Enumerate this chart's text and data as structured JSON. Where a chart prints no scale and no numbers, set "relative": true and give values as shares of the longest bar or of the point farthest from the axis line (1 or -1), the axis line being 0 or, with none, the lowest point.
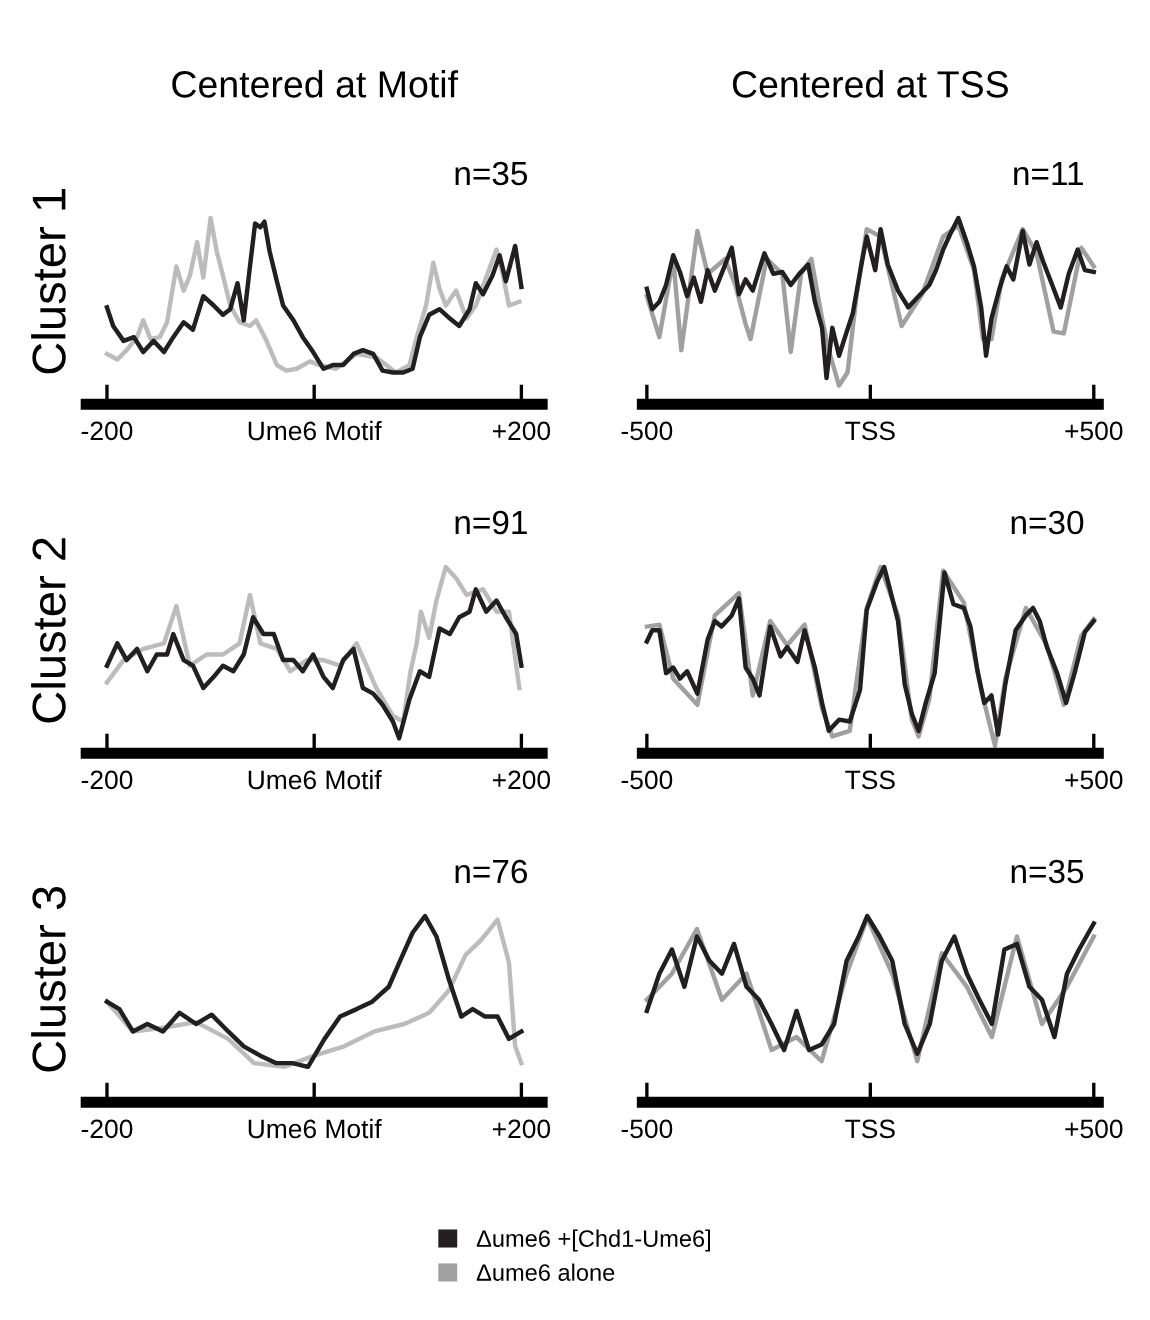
{
  "chart_data": [
    {
      "type": "line",
      "relative": true,
      "title": "Centered at Motif",
      "ylabel": "Cluster 1",
      "annotations": [
        "n=35"
      ],
      "xlim": [
        -220,
        220
      ],
      "xticks": [
        {
          "value": -200,
          "label": "-200"
        },
        {
          "value": 0,
          "label": "Ume6 Motif"
        },
        {
          "value": 200,
          "label": "+200"
        }
      ],
      "grid": false,
      "legend": false,
      "series": [
        {
          "color": "#bcbcbc",
          "x": [
            -200,
            -190,
            -181,
            -171,
            -165,
            -158,
            -149,
            -142,
            -133,
            -126,
            -120,
            -113,
            -107,
            -100,
            -94,
            -88,
            -81,
            -72,
            -62,
            -56,
            -46,
            -36,
            -27,
            -17,
            -4,
            5,
            21,
            41,
            60,
            79,
            92,
            99,
            108,
            115,
            121,
            127,
            137,
            147,
            156,
            166,
            176,
            182,
            188,
            198
          ],
          "values": [
            0.27,
            0.24,
            0.29,
            0.36,
            0.45,
            0.35,
            0.36,
            0.44,
            0.74,
            0.61,
            0.69,
            0.87,
            0.68,
            1.0,
            0.82,
            0.69,
            0.53,
            0.44,
            0.42,
            0.45,
            0.34,
            0.21,
            0.18,
            0.19,
            0.23,
            0.21,
            0.19,
            0.27,
            0.25,
            0.17,
            0.21,
            0.36,
            0.53,
            0.76,
            0.62,
            0.53,
            0.61,
            0.46,
            0.53,
            0.68,
            0.83,
            0.7,
            0.53,
            0.55
          ]
        },
        {
          "color": "#231f20",
          "x": [
            -200,
            -194,
            -184,
            -174,
            -165,
            -155,
            -145,
            -136,
            -126,
            -117,
            -107,
            -97,
            -88,
            -81,
            -74,
            -68,
            -62,
            -57,
            -52,
            -48,
            -43,
            -36,
            -30,
            -20,
            -11,
            -1,
            9,
            18,
            28,
            38,
            47,
            57,
            66,
            76,
            86,
            95,
            102,
            111,
            121,
            131,
            140,
            150,
            156,
            163,
            172,
            179,
            185,
            194,
            200
          ],
          "values": [
            0.52,
            0.42,
            0.34,
            0.36,
            0.28,
            0.34,
            0.28,
            0.36,
            0.44,
            0.4,
            0.58,
            0.53,
            0.48,
            0.51,
            0.65,
            0.45,
            0.74,
            0.97,
            0.95,
            0.98,
            0.82,
            0.66,
            0.53,
            0.45,
            0.36,
            0.28,
            0.19,
            0.21,
            0.21,
            0.27,
            0.29,
            0.27,
            0.18,
            0.17,
            0.17,
            0.19,
            0.36,
            0.48,
            0.51,
            0.46,
            0.42,
            0.51,
            0.65,
            0.59,
            0.69,
            0.8,
            0.66,
            0.85,
            0.63
          ]
        }
      ]
    },
    {
      "type": "line",
      "relative": true,
      "title": "Centered at TSS",
      "annotations": [
        "n=11"
      ],
      "xlim": [
        -510,
        510
      ],
      "xticks": [
        {
          "value": -500,
          "label": "-500"
        },
        {
          "value": 0,
          "label": "TSS"
        },
        {
          "value": 500,
          "label": "+500"
        }
      ],
      "grid": false,
      "legend": false,
      "series": [
        {
          "color": "#a0a0a0",
          "x": [
            -500,
            -472,
            -441,
            -423,
            -387,
            -364,
            -325,
            -302,
            -279,
            -268,
            -232,
            -197,
            -178,
            -155,
            -132,
            -108,
            -93,
            -70,
            -51,
            -31,
            -8,
            23,
            70,
            116,
            163,
            197,
            232,
            252,
            271,
            294,
            341,
            372,
            410,
            433,
            472,
            500
          ],
          "values": [
            0.58,
            0.36,
            0.78,
            0.29,
            0.93,
            0.7,
            0.78,
            0.64,
            0.43,
            0.35,
            0.78,
            0.7,
            0.28,
            0.7,
            0.78,
            0.46,
            0.29,
            0.1,
            0.17,
            0.58,
            0.94,
            0.9,
            0.42,
            0.59,
            0.9,
            0.96,
            0.72,
            0.35,
            0.35,
            0.67,
            0.94,
            0.81,
            0.39,
            0.38,
            0.84,
            0.74
          ]
        },
        {
          "color": "#231f20",
          "x": [
            -500,
            -488,
            -472,
            -457,
            -441,
            -426,
            -410,
            -395,
            -379,
            -364,
            -348,
            -333,
            -310,
            -294,
            -279,
            -263,
            -237,
            -217,
            -197,
            -178,
            -159,
            -139,
            -124,
            -108,
            -98,
            -85,
            -70,
            -54,
            -39,
            -20,
            -8,
            11,
            23,
            39,
            62,
            85,
            108,
            132,
            147,
            163,
            178,
            197,
            217,
            232,
            248,
            259,
            271,
            289,
            305,
            320,
            341,
            356,
            372,
            386,
            407,
            426,
            444,
            464,
            480,
            500
          ],
          "values": [
            0.62,
            0.51,
            0.55,
            0.64,
            0.8,
            0.71,
            0.58,
            0.68,
            0.55,
            0.72,
            0.61,
            0.7,
            0.84,
            0.59,
            0.67,
            0.61,
            0.81,
            0.7,
            0.71,
            0.64,
            0.7,
            0.75,
            0.55,
            0.41,
            0.14,
            0.41,
            0.26,
            0.38,
            0.49,
            0.75,
            0.9,
            0.72,
            0.94,
            0.75,
            0.61,
            0.52,
            0.58,
            0.64,
            0.72,
            0.83,
            0.91,
            1.0,
            0.86,
            0.74,
            0.52,
            0.26,
            0.46,
            0.62,
            0.74,
            0.67,
            0.93,
            0.75,
            0.87,
            0.77,
            0.64,
            0.52,
            0.7,
            0.83,
            0.72,
            0.71
          ]
        }
      ]
    },
    {
      "type": "line",
      "relative": true,
      "ylabel": "Cluster 2",
      "annotations": [
        "n=91"
      ],
      "xlim": [
        -220,
        220
      ],
      "xticks": [
        {
          "value": -200,
          "label": "-200"
        },
        {
          "value": 0,
          "label": "Ume6 Motif"
        },
        {
          "value": 200,
          "label": "+200"
        }
      ],
      "grid": false,
      "legend": false,
      "series": [
        {
          "color": "#bcbcbc",
          "x": [
            -200,
            -184,
            -165,
            -145,
            -133,
            -120,
            -104,
            -88,
            -72,
            -62,
            -52,
            -36,
            -23,
            -7,
            9,
            25,
            41,
            60,
            76,
            86,
            93,
            99,
            103,
            111,
            118,
            127,
            137,
            147,
            163,
            176,
            188,
            198
          ],
          "values": [
            0.38,
            0.5,
            0.56,
            0.59,
            0.79,
            0.47,
            0.53,
            0.53,
            0.59,
            0.85,
            0.59,
            0.56,
            0.44,
            0.5,
            0.5,
            0.47,
            0.59,
            0.35,
            0.2,
            0.17,
            0.44,
            0.59,
            0.76,
            0.62,
            0.82,
            1.0,
            0.94,
            0.85,
            0.88,
            0.76,
            0.76,
            0.35
          ]
        },
        {
          "color": "#231f20",
          "x": [
            -200,
            -190,
            -181,
            -171,
            -161,
            -152,
            -142,
            -136,
            -126,
            -117,
            -107,
            -97,
            -88,
            -78,
            -68,
            -59,
            -49,
            -39,
            -30,
            -20,
            -11,
            -1,
            9,
            18,
            28,
            38,
            47,
            57,
            66,
            76,
            82,
            92,
            102,
            111,
            121,
            131,
            140,
            150,
            156,
            166,
            176,
            185,
            195,
            200
          ],
          "values": [
            0.47,
            0.59,
            0.5,
            0.56,
            0.44,
            0.53,
            0.53,
            0.64,
            0.5,
            0.47,
            0.35,
            0.41,
            0.47,
            0.44,
            0.53,
            0.73,
            0.64,
            0.64,
            0.5,
            0.5,
            0.44,
            0.53,
            0.41,
            0.35,
            0.5,
            0.56,
            0.35,
            0.32,
            0.26,
            0.17,
            0.08,
            0.29,
            0.44,
            0.41,
            0.67,
            0.64,
            0.73,
            0.76,
            0.88,
            0.76,
            0.82,
            0.73,
            0.64,
            0.47
          ]
        }
      ]
    },
    {
      "type": "line",
      "relative": true,
      "annotations": [
        "n=30"
      ],
      "xlim": [
        -510,
        510
      ],
      "xticks": [
        {
          "value": -500,
          "label": "-500"
        },
        {
          "value": 0,
          "label": "TSS"
        },
        {
          "value": 500,
          "label": "+500"
        }
      ],
      "grid": false,
      "legend": false,
      "series": [
        {
          "color": "#a0a0a0",
          "x": [
            -500,
            -472,
            -441,
            -387,
            -348,
            -294,
            -263,
            -224,
            -186,
            -147,
            -108,
            -85,
            -46,
            -8,
            23,
            62,
            93,
            108,
            132,
            163,
            209,
            248,
            279,
            302,
            348,
            395,
            433,
            472,
            500
          ],
          "values": [
            0.68,
            0.69,
            0.4,
            0.26,
            0.74,
            0.86,
            0.31,
            0.71,
            0.58,
            0.69,
            0.24,
            0.09,
            0.12,
            0.78,
            1.0,
            0.74,
            0.18,
            0.09,
            0.29,
            0.98,
            0.81,
            0.34,
            0.04,
            0.4,
            0.78,
            0.58,
            0.26,
            0.63,
            0.72
          ]
        },
        {
          "color": "#231f20",
          "x": [
            -500,
            -488,
            -472,
            -457,
            -441,
            -426,
            -410,
            -387,
            -364,
            -348,
            -333,
            -310,
            -294,
            -279,
            -263,
            -248,
            -224,
            -201,
            -186,
            -163,
            -147,
            -124,
            -108,
            -93,
            -70,
            -46,
            -23,
            -8,
            15,
            31,
            46,
            62,
            77,
            93,
            108,
            124,
            144,
            166,
            186,
            209,
            224,
            240,
            255,
            271,
            286,
            302,
            325,
            348,
            364,
            379,
            395,
            418,
            438,
            457,
            480,
            500
          ],
          "values": [
            0.6,
            0.66,
            0.66,
            0.43,
            0.46,
            0.4,
            0.44,
            0.32,
            0.61,
            0.71,
            0.68,
            0.74,
            0.83,
            0.46,
            0.4,
            0.31,
            0.68,
            0.52,
            0.57,
            0.49,
            0.66,
            0.46,
            0.27,
            0.12,
            0.18,
            0.17,
            0.34,
            0.77,
            0.92,
            1.0,
            0.86,
            0.71,
            0.37,
            0.21,
            0.12,
            0.27,
            0.43,
            0.97,
            0.8,
            0.78,
            0.68,
            0.44,
            0.27,
            0.31,
            0.1,
            0.37,
            0.66,
            0.74,
            0.78,
            0.71,
            0.57,
            0.43,
            0.27,
            0.43,
            0.65,
            0.71
          ]
        }
      ]
    },
    {
      "type": "line",
      "relative": true,
      "ylabel": "Cluster 3",
      "annotations": [
        "n=76"
      ],
      "xlim": [
        -220,
        220
      ],
      "xticks": [
        {
          "value": -200,
          "label": "-200"
        },
        {
          "value": 0,
          "label": "Ume6 Motif"
        },
        {
          "value": 200,
          "label": "+200"
        }
      ],
      "grid": false,
      "legend": false,
      "series": [
        {
          "color": "#bcbcbc",
          "x": [
            -200,
            -175,
            -146,
            -114,
            -83,
            -58,
            -29,
            0,
            29,
            58,
            87,
            111,
            130,
            146,
            161,
            177,
            188,
            194,
            200
          ],
          "values": [
            0.54,
            0.38,
            0.4,
            0.43,
            0.34,
            0.21,
            0.19,
            0.25,
            0.3,
            0.38,
            0.42,
            0.48,
            0.6,
            0.79,
            0.87,
            0.98,
            0.75,
            0.3,
            0.21
          ]
        },
        {
          "color": "#231f20",
          "x": [
            -200,
            -188,
            -175,
            -161,
            -146,
            -130,
            -114,
            -99,
            -83,
            -68,
            -52,
            -37,
            -21,
            -6,
            10,
            25,
            41,
            56,
            72,
            83,
            95,
            107,
            118,
            130,
            142,
            153,
            165,
            177,
            188,
            200
          ],
          "values": [
            0.54,
            0.5,
            0.38,
            0.42,
            0.38,
            0.48,
            0.42,
            0.47,
            0.38,
            0.3,
            0.25,
            0.21,
            0.21,
            0.19,
            0.34,
            0.46,
            0.5,
            0.54,
            0.62,
            0.76,
            0.91,
            1.0,
            0.89,
            0.66,
            0.46,
            0.5,
            0.46,
            0.46,
            0.34,
            0.38
          ]
        }
      ]
    },
    {
      "type": "line",
      "relative": true,
      "annotations": [
        "n=35"
      ],
      "xlim": [
        -510,
        510
      ],
      "xticks": [
        {
          "value": -500,
          "label": "-500"
        },
        {
          "value": 0,
          "label": "TSS"
        },
        {
          "value": 500,
          "label": "+500"
        }
      ],
      "grid": false,
      "legend": "bottom",
      "series": [
        {
          "name": "Δume6 alone",
          "color": "#a0a0a0",
          "x": [
            -500,
            -444,
            -388,
            -332,
            -277,
            -221,
            -165,
            -109,
            -53,
            -7,
            49,
            105,
            160,
            216,
            272,
            328,
            384,
            440,
            500
          ],
          "values": [
            0.55,
            0.69,
            0.93,
            0.55,
            0.69,
            0.28,
            0.35,
            0.22,
            0.69,
            0.99,
            0.69,
            0.22,
            0.8,
            0.62,
            0.35,
            0.89,
            0.42,
            0.62,
            0.89
          ]
        },
        {
          "name": "Δume6 +[Chd1-Ume6]",
          "color": "#231f20",
          "x": [
            -500,
            -472,
            -444,
            -416,
            -388,
            -360,
            -332,
            -305,
            -277,
            -249,
            -221,
            -193,
            -165,
            -137,
            -109,
            -81,
            -53,
            -26,
            -7,
            21,
            49,
            77,
            105,
            133,
            160,
            188,
            216,
            244,
            272,
            300,
            328,
            356,
            384,
            412,
            440,
            467,
            500
          ],
          "values": [
            0.49,
            0.69,
            0.82,
            0.62,
            0.89,
            0.76,
            0.69,
            0.85,
            0.62,
            0.55,
            0.42,
            0.28,
            0.49,
            0.28,
            0.31,
            0.42,
            0.76,
            0.89,
            1.0,
            0.89,
            0.76,
            0.42,
            0.26,
            0.42,
            0.76,
            0.89,
            0.69,
            0.55,
            0.42,
            0.82,
            0.85,
            0.62,
            0.55,
            0.35,
            0.69,
            0.82,
            0.96
          ]
        }
      ]
    }
  ]
}
